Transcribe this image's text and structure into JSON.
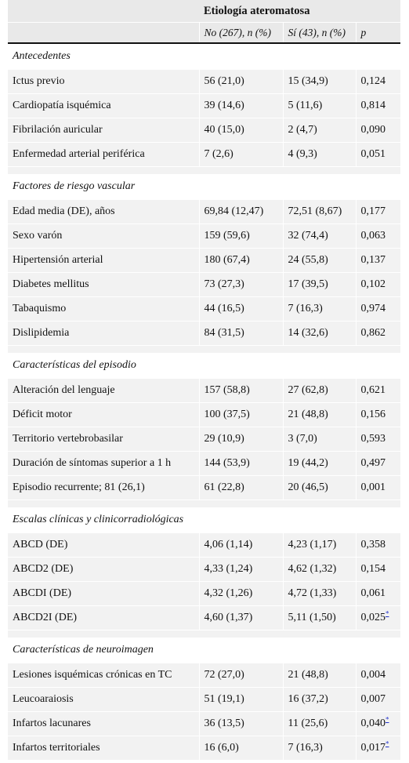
{
  "header": {
    "group_title": "Etiología ateromatosa",
    "col_no": "No (267), n (%)",
    "col_si": "Sí (43), n (%)",
    "col_p": "p"
  },
  "sections": [
    {
      "title": "Antecedentes",
      "rows": [
        {
          "label": "Ictus previo",
          "no": "56 (21,0)",
          "si": "15 (34,9)",
          "p": "0,124",
          "mark": ""
        },
        {
          "label": "Cardiopatía isquémica",
          "no": "39 (14,6)",
          "si": "5 (11,6)",
          "p": "0,814",
          "mark": ""
        },
        {
          "label": "Fibrilación auricular",
          "no": "40 (15,0)",
          "si": "2 (4,7)",
          "p": "0,090",
          "mark": ""
        },
        {
          "label": "Enfermedad arterial periférica",
          "no": "7 (2,6)",
          "si": "4 (9,3)",
          "p": "0,051",
          "mark": ""
        }
      ]
    },
    {
      "title": "Factores de riesgo vascular",
      "rows": [
        {
          "label": "Edad media (DE), años",
          "no": "69,84 (12,47)",
          "si": "72,51 (8,67)",
          "p": "0,177",
          "mark": ""
        },
        {
          "label": "Sexo varón",
          "no": "159 (59,6)",
          "si": "32 (74,4)",
          "p": "0,063",
          "mark": ""
        },
        {
          "label": "Hipertensión arterial",
          "no": "180 (67,4)",
          "si": "24 (55,8)",
          "p": "0,137",
          "mark": ""
        },
        {
          "label": "Diabetes mellitus",
          "no": "73 (27,3)",
          "si": "17 (39,5)",
          "p": "0,102",
          "mark": ""
        },
        {
          "label": "Tabaquismo",
          "no": "44 (16,5)",
          "si": "7 (16,3)",
          "p": "0,974",
          "mark": ""
        },
        {
          "label": "Dislipidemia",
          "no": "84 (31,5)",
          "si": "14 (32,6)",
          "p": "0,862",
          "mark": ""
        }
      ]
    },
    {
      "title": "Características del episodio",
      "rows": [
        {
          "label": "Alteración del lenguaje",
          "no": "157 (58,8)",
          "si": "27 (62,8)",
          "p": "0,621",
          "mark": ""
        },
        {
          "label": "Déficit motor",
          "no": "100 (37,5)",
          "si": "21 (48,8)",
          "p": "0,156",
          "mark": ""
        },
        {
          "label": "Territorio vertebrobasilar",
          "no": "29 (10,9)",
          "si": "3 (7,0)",
          "p": "0,593",
          "mark": ""
        },
        {
          "label": "Duración de síntomas superior a 1 h",
          "no": "144 (53,9)",
          "si": "19 (44,2)",
          "p": "0,497",
          "mark": ""
        },
        {
          "label": "Episodio recurrente; 81 (26,1)",
          "no": "61 (22,8)",
          "si": "20 (46,5)",
          "p": "0,001",
          "mark": ""
        }
      ]
    },
    {
      "title": "Escalas clínicas y clinicorradiológicas",
      "rows": [
        {
          "label": "ABCD (DE)",
          "no": "4,06 (1,14)",
          "si": "4,23 (1,17)",
          "p": "0,358",
          "mark": ""
        },
        {
          "label": "ABCD2 (DE)",
          "no": "4,33 (1,24)",
          "si": "4,62 (1,32)",
          "p": "0,154",
          "mark": ""
        },
        {
          "label": "ABCDI (DE)",
          "no": "4,32 (1,26)",
          "si": "4,72 (1,33)",
          "p": "0,061",
          "mark": ""
        },
        {
          "label": "ABCD2I (DE)",
          "no": "4,60 (1,37)",
          "si": "5,11 (1,50)",
          "p": "0,025",
          "mark": "*"
        }
      ]
    },
    {
      "title": "Características de neuroimagen",
      "rows": [
        {
          "label": "Lesiones isquémicas crónicas en TC",
          "no": "72 (27,0)",
          "si": "21 (48,8)",
          "p": "0,004",
          "mark": ""
        },
        {
          "label": "Leucoaraiosis",
          "no": "51 (19,1)",
          "si": "16 (37,2)",
          "p": "0,007",
          "mark": ""
        },
        {
          "label": "Infartos lacunares",
          "no": "36 (13,5)",
          "si": "11 (25,6)",
          "p": "0,040",
          "mark": "*"
        },
        {
          "label": "Infartos territoriales",
          "no": "16 (6,0)",
          "si": "7 (16,3)",
          "p": "0,017",
          "mark": "*"
        }
      ]
    }
  ]
}
